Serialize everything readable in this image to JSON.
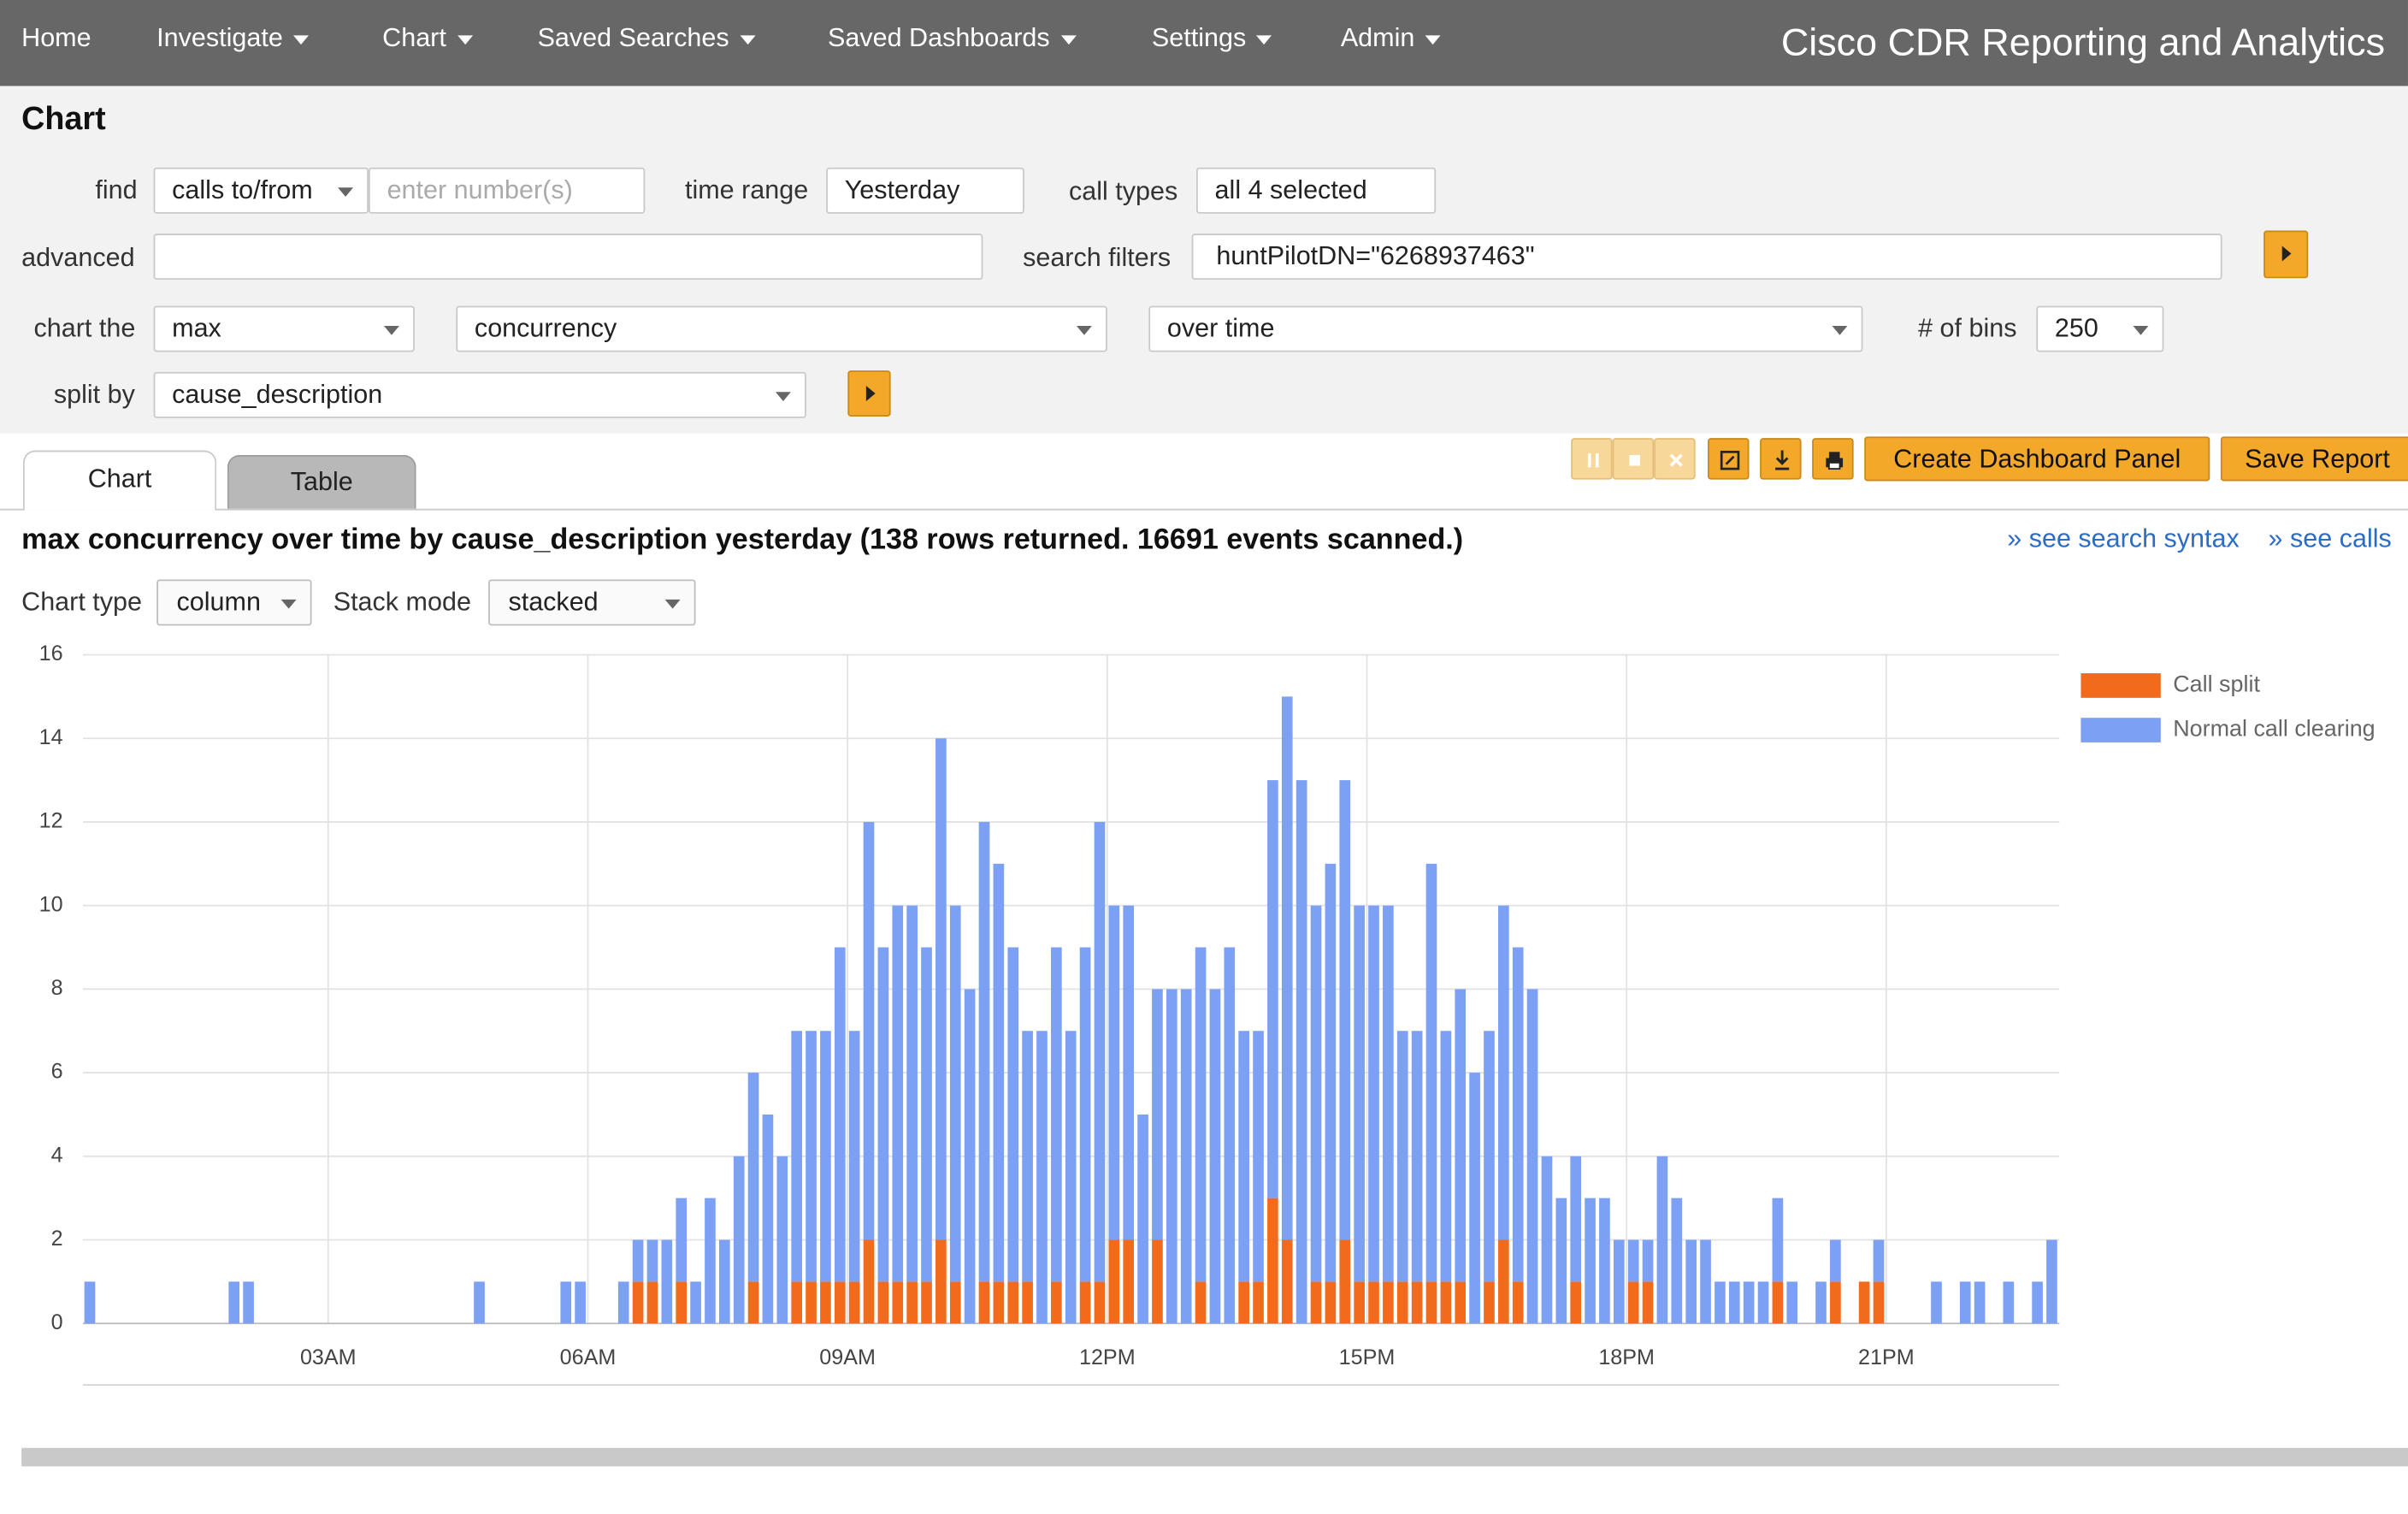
{
  "nav": {
    "items": [
      "Home",
      "Investigate",
      "Chart",
      "Saved Searches",
      "Saved Dashboards",
      "Settings",
      "Admin"
    ],
    "app_title": "Cisco CDR Reporting and Analytics"
  },
  "page_title": "Chart",
  "form": {
    "find_label": "find",
    "find_mode": "calls to/from",
    "number_placeholder": "enter number(s)",
    "time_range_label": "time range",
    "time_range": "Yesterday",
    "call_types_label": "call types",
    "call_types": "all 4 selected",
    "advanced_label": "advanced",
    "search_filters_label": "search filters",
    "search_filters": "huntPilotDN=\"6268937463\"",
    "chart_the_label": "chart the",
    "function": "max",
    "field": "concurrency",
    "over": "over time",
    "bins_label": "# of bins",
    "bins": 250,
    "split_by_label": "split by",
    "split_by": "cause_description"
  },
  "tabs": [
    "Chart",
    "Table"
  ],
  "buttons": [
    "Create Dashboard Panel",
    "Save Report"
  ],
  "links": [
    "» see search syntax",
    "» see calls"
  ],
  "chart_options": {
    "chart_type_label": "Chart type",
    "chart_type": "column",
    "stack_mode_label": "Stack mode",
    "stack_mode": "stacked"
  },
  "chart_data": {
    "type": "bar",
    "stacked": true,
    "title": "max concurrency over time by cause_description yesterday (138 rows returned. 16691 events scanned.)",
    "x": [
      10,
      110,
      120,
      280,
      340,
      350,
      380,
      390,
      400,
      410,
      420,
      430,
      440,
      450,
      460,
      470,
      480,
      490,
      500,
      510,
      520,
      530,
      540,
      550,
      560,
      570,
      580,
      590,
      600,
      610,
      620,
      630,
      640,
      650,
      660,
      670,
      680,
      690,
      700,
      710,
      720,
      730,
      740,
      750,
      760,
      770,
      780,
      790,
      800,
      810,
      820,
      830,
      840,
      850,
      860,
      870,
      880,
      890,
      900,
      910,
      920,
      930,
      940,
      950,
      960,
      970,
      980,
      990,
      1000,
      1010,
      1020,
      1030,
      1040,
      1050,
      1060,
      1070,
      1080,
      1090,
      1100,
      1110,
      1120,
      1130,
      1140,
      1150,
      1160,
      1170,
      1180,
      1190,
      1210,
      1220,
      1240,
      1250,
      1290,
      1310,
      1320,
      1340,
      1360,
      1370
    ],
    "series": [
      {
        "name": "Call split",
        "color": "#f26b1d",
        "values": [
          0,
          0,
          0,
          0,
          0,
          0,
          0,
          1,
          1,
          0,
          1,
          0,
          0,
          0,
          0,
          1,
          0,
          0,
          1,
          1,
          1,
          1,
          1,
          2,
          1,
          1,
          1,
          1,
          2,
          1,
          0,
          1,
          1,
          1,
          1,
          0,
          1,
          0,
          1,
          1,
          2,
          2,
          0,
          2,
          0,
          0,
          1,
          0,
          0,
          1,
          1,
          3,
          2,
          0,
          1,
          1,
          2,
          1,
          1,
          1,
          1,
          1,
          1,
          1,
          1,
          0,
          1,
          2,
          1,
          0,
          0,
          0,
          1,
          0,
          0,
          0,
          1,
          1,
          0,
          0,
          0,
          0,
          0,
          0,
          0,
          0,
          1,
          0,
          0,
          1,
          1,
          1,
          0,
          0,
          0,
          0,
          0,
          0
        ]
      },
      {
        "name": "Normal call clearing",
        "color": "#7ba0f4",
        "values": [
          1,
          1,
          1,
          1,
          1,
          1,
          1,
          1,
          1,
          2,
          2,
          1,
          3,
          2,
          4,
          5,
          5,
          4,
          6,
          6,
          6,
          8,
          6,
          10,
          8,
          9,
          9,
          8,
          12,
          9,
          8,
          11,
          10,
          8,
          6,
          7,
          8,
          7,
          8,
          11,
          8,
          8,
          5,
          6,
          8,
          8,
          8,
          8,
          9,
          6,
          6,
          10,
          13,
          13,
          9,
          10,
          11,
          9,
          9,
          9,
          6,
          6,
          10,
          6,
          7,
          6,
          6,
          8,
          8,
          8,
          4,
          3,
          3,
          3,
          3,
          2,
          1,
          1,
          4,
          3,
          2,
          2,
          1,
          1,
          1,
          1,
          2,
          1,
          1,
          1,
          0,
          1,
          1,
          1,
          1,
          1,
          1,
          2
        ]
      }
    ],
    "xlim": [
      10,
      1380
    ],
    "xticks": [
      {
        "value": 180,
        "label": "03AM"
      },
      {
        "value": 360,
        "label": "06AM"
      },
      {
        "value": 540,
        "label": "09AM"
      },
      {
        "value": 720,
        "label": "12PM"
      },
      {
        "value": 900,
        "label": "15PM"
      },
      {
        "value": 1080,
        "label": "18PM"
      },
      {
        "value": 1260,
        "label": "21PM"
      }
    ],
    "ylim": [
      0,
      16
    ],
    "yticks": [
      0,
      2,
      4,
      6,
      8,
      10,
      12,
      14,
      16
    ],
    "grid": true,
    "legend": "right"
  }
}
